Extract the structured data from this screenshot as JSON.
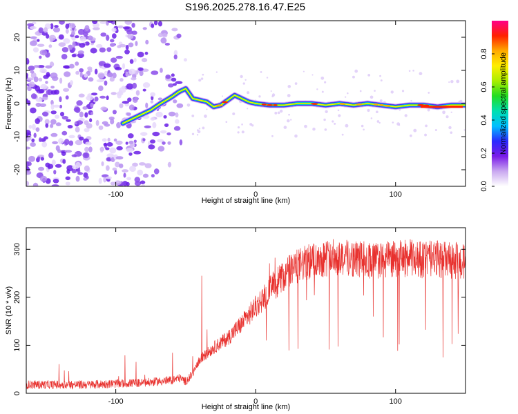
{
  "title": "S196.2025.278.16.47.E25",
  "chart_data": [
    {
      "type": "heatmap",
      "xlabel": "Height of straight line (km)",
      "ylabel": "Frequency (Hz)",
      "xlim": [
        -164,
        150
      ],
      "ylim": [
        -25,
        25
      ],
      "x_ticks": [
        -100,
        0,
        100
      ],
      "y_ticks": [
        -20,
        -10,
        0,
        10,
        20
      ],
      "colorbar": {
        "label": "Normalized spectral amplitude",
        "range": [
          0.0,
          1.0
        ],
        "ticks": [
          0.0,
          0.2,
          0.4,
          0.6,
          0.8
        ],
        "colors": [
          "#ffffff",
          "#c9a8f0",
          "#7a1be8",
          "#2a2aff",
          "#00bfff",
          "#00e0b0",
          "#22dd22",
          "#aaee00",
          "#ffee00",
          "#ffaa00",
          "#ff2200",
          "#ff0088"
        ]
      },
      "ridge": {
        "x": [
          -95,
          -85,
          -75,
          -68,
          -60,
          -55,
          -50,
          -45,
          -40,
          -35,
          -30,
          -25,
          -20,
          -15,
          -10,
          -5,
          0,
          10,
          20,
          30,
          40,
          50,
          60,
          70,
          80,
          90,
          100,
          110,
          120,
          130,
          140,
          150
        ],
        "freq": [
          -6,
          -4,
          -2,
          0,
          2,
          3.5,
          4.5,
          1.5,
          1,
          0.5,
          -1,
          -0.5,
          1,
          2.5,
          1.5,
          0.5,
          0,
          -0.5,
          -0.5,
          0,
          0,
          -0.5,
          0,
          -0.5,
          0,
          -0.5,
          -1,
          -0.5,
          -0.5,
          -1,
          -0.5,
          -0.5
        ]
      },
      "noise_region_x": [
        -164,
        -50
      ]
    },
    {
      "type": "line",
      "xlabel": "Height of straight line (km)",
      "ylabel": "SNR (10 * v/v)",
      "xlim": [
        -164,
        150
      ],
      "ylim": [
        0,
        345
      ],
      "x_ticks": [
        -100,
        0,
        100
      ],
      "y_ticks": [
        0,
        100,
        200,
        300
      ],
      "color": "#e8312e",
      "series": [
        {
          "name": "SNR",
          "x": [
            -164,
            -140,
            -120,
            -100,
            -80,
            -60,
            -55,
            -50,
            -45,
            -40,
            -30,
            -20,
            -10,
            0,
            10,
            20,
            30,
            40,
            50,
            60,
            70,
            80,
            90,
            100,
            110,
            120,
            130,
            140,
            150
          ],
          "values": [
            18,
            18,
            18,
            20,
            22,
            27,
            32,
            25,
            40,
            70,
            95,
            115,
            145,
            180,
            215,
            245,
            265,
            275,
            282,
            285,
            280,
            278,
            276,
            280,
            282,
            278,
            280,
            276,
            275
          ]
        }
      ]
    }
  ]
}
